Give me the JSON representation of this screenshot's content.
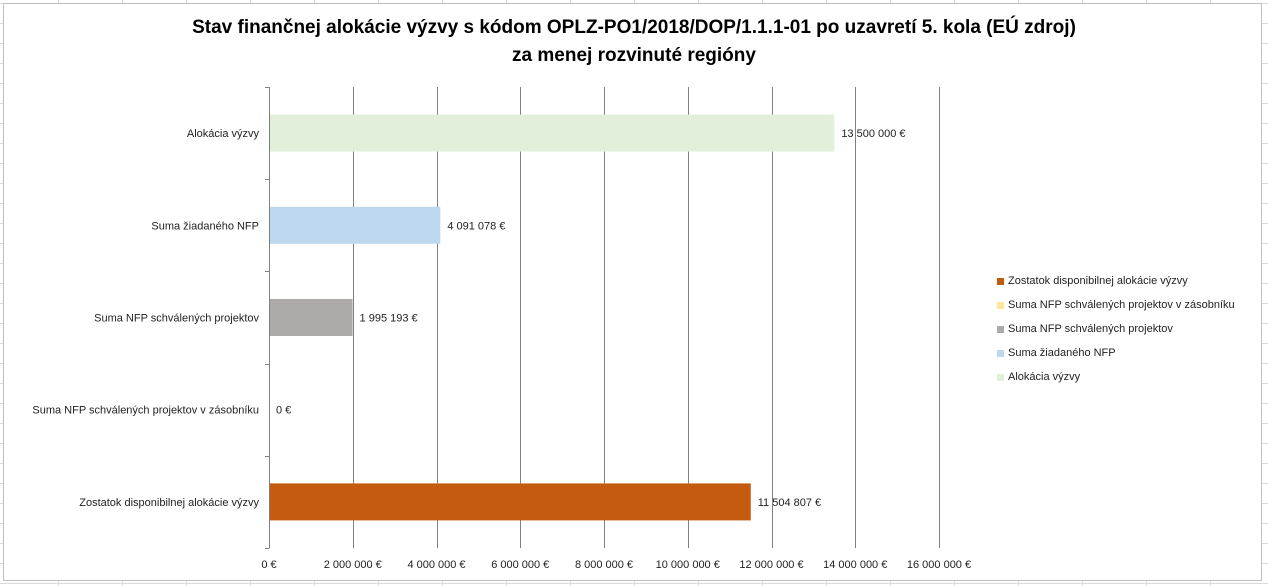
{
  "chart_data": {
    "type": "bar",
    "orientation": "horizontal",
    "title": "Stav finančnej alokácie výzvy s kódom OPLZ-PO1/2018/DOP/1.1.1-01 po uzavretí 5. kola (EÚ zdroj)",
    "subtitle": "za menej rozvinuté regióny",
    "categories": [
      "Alokácia výzvy",
      "Suma žiadaného NFP",
      "Suma NFP schválených projektov",
      "Suma NFP schválených projektov v zásobníku",
      "Zostatok disponibilnej alokácie výzvy"
    ],
    "values": [
      13500000,
      4091078,
      1995193,
      0,
      11504807
    ],
    "value_labels": [
      "13 500 000 €",
      "4 091 078 €",
      "1 995 193 €",
      "0 €",
      "11 504 807 €"
    ],
    "colors": [
      "#e2efda",
      "#bdd7ee",
      "#aeaaaa",
      "#ffe699",
      "#c55a11"
    ],
    "xlim": [
      0,
      16000000
    ],
    "x_ticks": [
      0,
      2000000,
      4000000,
      6000000,
      8000000,
      10000000,
      12000000,
      14000000,
      16000000
    ],
    "x_tick_labels": [
      "0 €",
      "2 000 000 €",
      "4 000 000 €",
      "6 000 000 €",
      "8 000 000 €",
      "10 000 000 €",
      "12 000 000 €",
      "14 000 000 €",
      "16 000 000 €"
    ],
    "xlabel": "",
    "ylabel": "",
    "grid": true,
    "legend_position": "right",
    "legend": [
      {
        "label": "Zostatok disponibilnej alokácie výzvy",
        "color": "#c55a11"
      },
      {
        "label": "Suma NFP schválených projektov v zásobníku",
        "color": "#ffe699"
      },
      {
        "label": "Suma NFP schválených projektov",
        "color": "#aeaaaa"
      },
      {
        "label": "Suma žiadaného NFP",
        "color": "#bdd7ee"
      },
      {
        "label": "Alokácia výzvy",
        "color": "#e2efda"
      }
    ]
  }
}
